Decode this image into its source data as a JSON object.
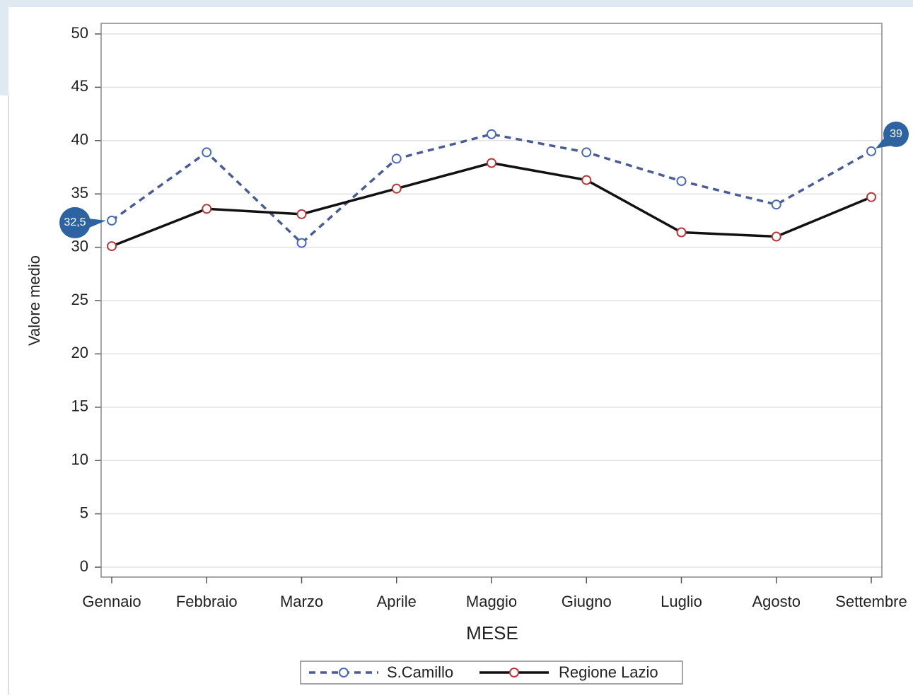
{
  "chart_data": {
    "type": "line",
    "x_label": "MESE",
    "y_label": "Valore medio",
    "categories": [
      "Gennaio",
      "Febbraio",
      "Marzo",
      "Aprile",
      "Maggio",
      "Giugno",
      "Luglio",
      "Agosto",
      "Settembre"
    ],
    "series": [
      {
        "name": "S.Camillo",
        "color": "#4a5c96",
        "marker_color": "#4a6bb0",
        "line_style": "dashed",
        "values": [
          32.5,
          38.9,
          30.4,
          38.3,
          40.6,
          38.9,
          36.2,
          34.0,
          39
        ],
        "value_labels": [
          "32,5",
          null,
          null,
          null,
          null,
          null,
          null,
          null,
          "39"
        ]
      },
      {
        "name": "Regione Lazio",
        "color": "#111111",
        "marker_color": "#b23a3a",
        "line_style": "solid",
        "values": [
          30.1,
          33.6,
          33.1,
          35.5,
          37.9,
          36.3,
          31.4,
          31.0,
          34.7
        ]
      }
    ],
    "ylim": [
      0,
      50
    ],
    "yticks": [
      0,
      5,
      10,
      15,
      20,
      25,
      30,
      35,
      40,
      45,
      50
    ],
    "grid": true,
    "callout_color": "#2c63a0",
    "legend": "bottom"
  }
}
